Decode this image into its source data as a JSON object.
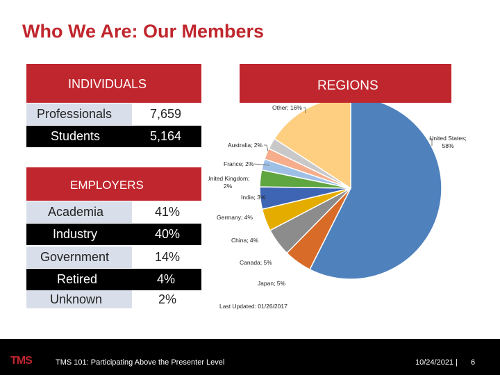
{
  "slide": {
    "title": "Who We Are: Our Members"
  },
  "individuals": {
    "header": "INDIVIDUALS",
    "rows": [
      {
        "label": "Professionals",
        "value": "7,659"
      },
      {
        "label": "Students",
        "value": "5,164"
      }
    ]
  },
  "employers": {
    "header": "EMPLOYERS",
    "rows": [
      {
        "label": "Academia",
        "value": "41%"
      },
      {
        "label": "Industry",
        "value": "40%"
      },
      {
        "label": "Government",
        "value": "14%"
      },
      {
        "label": "Retired",
        "value": "4%"
      },
      {
        "label": "Unknown",
        "value": "2%"
      }
    ]
  },
  "regions": {
    "header": "REGIONS",
    "last_updated": "Last Updated: 01/26/2017"
  },
  "chart_data": {
    "type": "pie",
    "title": "REGIONS",
    "slices": [
      {
        "label": "United States; 58%",
        "name": "United States",
        "value": 58,
        "color": "#4f81bd"
      },
      {
        "label": "Japan; 5%",
        "name": "Japan",
        "value": 5,
        "color": "#d86b27"
      },
      {
        "label": "Canada; 5%",
        "name": "Canada",
        "value": 5,
        "color": "#8c8c8c"
      },
      {
        "label": "China; 4%",
        "name": "China",
        "value": 4,
        "color": "#e5ac00"
      },
      {
        "label": "Germany; 4%",
        "name": "Germany",
        "value": 4,
        "color": "#3e65b4"
      },
      {
        "label": "India; 3%",
        "name": "India",
        "value": 3,
        "color": "#5fa641"
      },
      {
        "label": "United Kingdom; 2%",
        "name": "United Kingdom",
        "value": 2,
        "color": "#9fc0e6"
      },
      {
        "label": "France; 2%",
        "name": "France",
        "value": 2,
        "color": "#f5ad8b"
      },
      {
        "label": "Australia; 2%",
        "name": "Australia",
        "value": 2,
        "color": "#c8c8c8"
      },
      {
        "label": "Other; 16%",
        "name": "Other",
        "value": 16,
        "color": "#fecf80"
      }
    ]
  },
  "footer": {
    "logo": "TMS",
    "title": "TMS 101: Participating Above the Presenter Level",
    "date": "10/24/2021",
    "separator": "|",
    "page": "6"
  }
}
